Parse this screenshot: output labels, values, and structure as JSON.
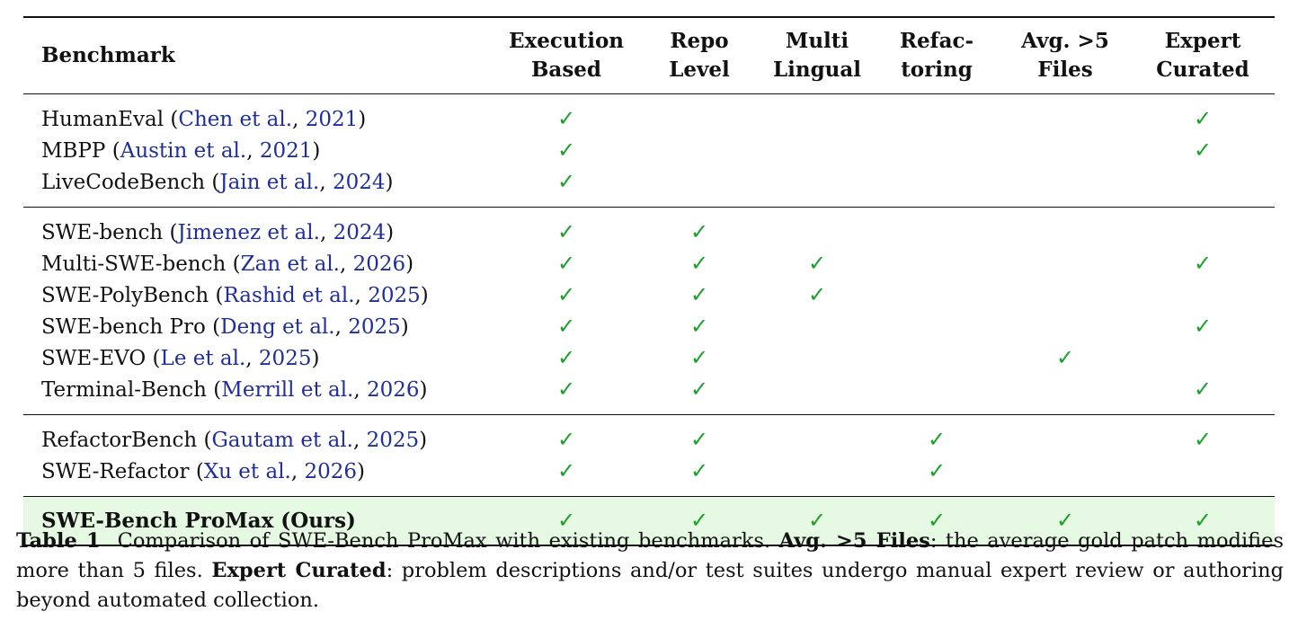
{
  "table": {
    "headers": [
      {
        "key": "benchmark",
        "lines": [
          "Benchmark"
        ]
      },
      {
        "key": "execution_based",
        "lines": [
          "Execution",
          "Based"
        ]
      },
      {
        "key": "repo_level",
        "lines": [
          "Repo",
          "Level"
        ]
      },
      {
        "key": "multi_lingual",
        "lines": [
          "Multi",
          "Lingual"
        ]
      },
      {
        "key": "refactoring",
        "lines": [
          "Refac-",
          "toring"
        ]
      },
      {
        "key": "avg_files",
        "lines": [
          "Avg. >5",
          "Files"
        ]
      },
      {
        "key": "expert_curated",
        "lines": [
          "Expert",
          "Curated"
        ]
      }
    ],
    "check_symbol": "✓",
    "check_color": "#1aa12a",
    "citation_color": "#1f2e9a",
    "highlight_color": "#e6f9e2",
    "groups": [
      [
        {
          "name": "HumanEval",
          "cite_authors": "Chen et al.",
          "cite_year": "2021",
          "checks": [
            true,
            false,
            false,
            false,
            false,
            true
          ]
        },
        {
          "name": "MBPP",
          "cite_authors": "Austin et al.",
          "cite_year": "2021",
          "checks": [
            true,
            false,
            false,
            false,
            false,
            true
          ]
        },
        {
          "name": "LiveCodeBench",
          "cite_authors": "Jain et al.",
          "cite_year": "2024",
          "checks": [
            true,
            false,
            false,
            false,
            false,
            false
          ]
        }
      ],
      [
        {
          "name": "SWE-bench",
          "cite_authors": "Jimenez et al.",
          "cite_year": "2024",
          "checks": [
            true,
            true,
            false,
            false,
            false,
            false
          ]
        },
        {
          "name": "Multi-SWE-bench",
          "cite_authors": "Zan et al.",
          "cite_year": "2026",
          "checks": [
            true,
            true,
            true,
            false,
            false,
            true
          ]
        },
        {
          "name": "SWE-PolyBench",
          "cite_authors": "Rashid et al.",
          "cite_year": "2025",
          "checks": [
            true,
            true,
            true,
            false,
            false,
            false
          ]
        },
        {
          "name": "SWE-bench Pro",
          "cite_authors": "Deng et al.",
          "cite_year": "2025",
          "checks": [
            true,
            true,
            false,
            false,
            false,
            true
          ]
        },
        {
          "name": "SWE-EVO",
          "cite_authors": "Le et al.",
          "cite_year": "2025",
          "checks": [
            true,
            true,
            false,
            false,
            true,
            false
          ]
        },
        {
          "name": "Terminal-Bench",
          "cite_authors": "Merrill et al.",
          "cite_year": "2026",
          "checks": [
            true,
            true,
            false,
            false,
            false,
            true
          ]
        }
      ],
      [
        {
          "name": "RefactorBench",
          "cite_authors": "Gautam et al.",
          "cite_year": "2025",
          "checks": [
            true,
            true,
            false,
            true,
            false,
            true
          ]
        },
        {
          "name": "SWE-Refactor",
          "cite_authors": "Xu et al.",
          "cite_year": "2026",
          "checks": [
            true,
            true,
            false,
            true,
            false,
            false
          ]
        }
      ]
    ],
    "highlight_row": {
      "name": "SWE-Bench ProMax (Ours)",
      "checks": [
        true,
        true,
        true,
        true,
        true,
        true
      ]
    }
  },
  "caption": {
    "label": "Table 1",
    "text_1": "Comparison of SWE-Bench ProMax with existing benchmarks.",
    "term_1": "Avg. >5 Files",
    "text_2": ": the average gold patch modifies more than 5 files.",
    "term_2": "Expert Curated",
    "text_3": ": problem descriptions and/or test suites undergo manual expert review or authoring beyond automated collection."
  }
}
